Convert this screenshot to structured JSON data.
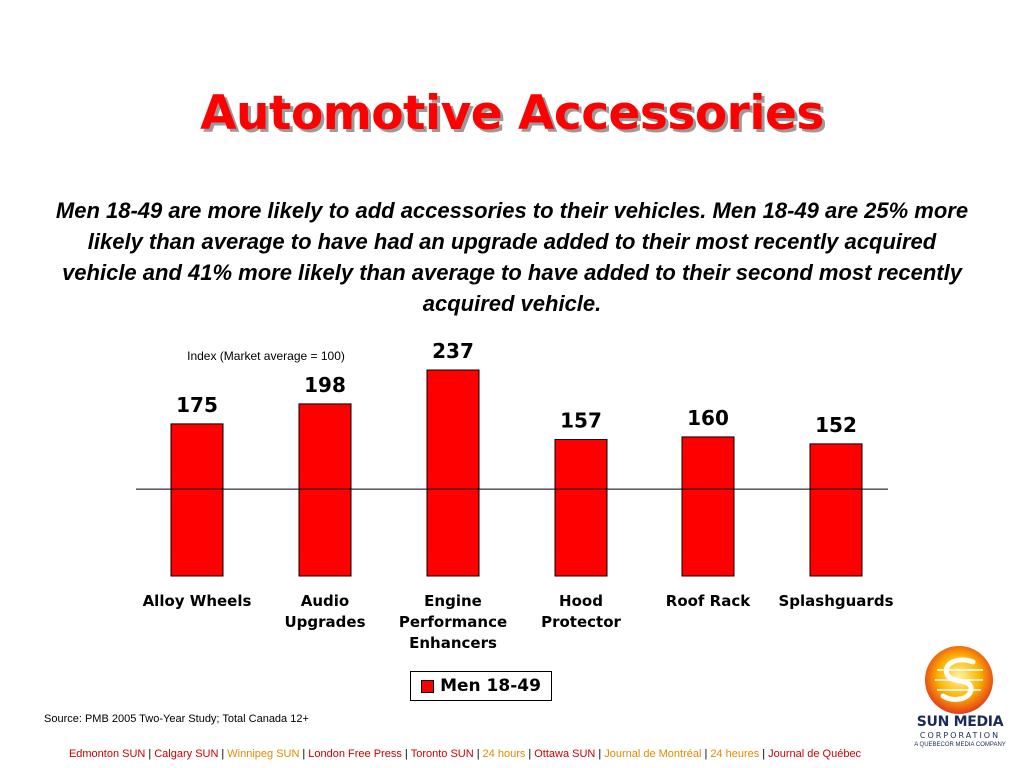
{
  "title": "Automotive Accessories",
  "subtitle": "Men 18-49 are more likely to add accessories to their vehicles.  Men 18-49 are 25% more likely than average to have had an upgrade added to their most recently acquired vehicle and 41% more likely than average to have added to their second most recently acquired vehicle.",
  "chart_data": {
    "type": "bar",
    "ylabel": "Index (Market average = 100)",
    "categories": [
      "Alloy Wheels",
      "Audio Upgrades",
      "Engine Performance Enhancers",
      "Hood Protector",
      "Roof Rack",
      "Splashguards"
    ],
    "category_lines": [
      [
        "Alloy Wheels"
      ],
      [
        "Audio",
        "Upgrades"
      ],
      [
        "Engine",
        "Performance",
        "Enhancers"
      ],
      [
        "Hood",
        "Protector"
      ],
      [
        "Roof Rack"
      ],
      [
        "Splashguards"
      ]
    ],
    "series": [
      {
        "name": "Men 18-49",
        "values": [
          175,
          198,
          237,
          157,
          160,
          152
        ]
      }
    ],
    "reference_line": 100,
    "ylim": [
      0,
      237
    ],
    "grid": false,
    "legend": "bottom",
    "bar_color": "#ff0000"
  },
  "legend": {
    "label": "Men 18-49"
  },
  "source": "Source: PMB 2005 Two-Year Study; Total Canada 12+",
  "footer": [
    {
      "text": "Edmonton SUN",
      "color": "#cc0000"
    },
    {
      "text": "Calgary SUN",
      "color": "#cc0000"
    },
    {
      "text": "Winnipeg SUN",
      "color": "#e08a00"
    },
    {
      "text": "London Free Press",
      "color": "#cc0000"
    },
    {
      "text": "Toronto SUN",
      "color": "#cc0000"
    },
    {
      "text": "24 hours",
      "color": "#e08a00"
    },
    {
      "text": "Ottawa SUN",
      "color": "#cc0000"
    },
    {
      "text": "Journal de Montréal",
      "color": "#e08a00"
    },
    {
      "text": "24 heures",
      "color": "#e08a00"
    },
    {
      "text": "Journal de Québec",
      "color": "#cc0000"
    }
  ],
  "logo": {
    "name": "SUN MEDIA",
    "corp": "CORPORATION",
    "tagline": "A QUEBECOR MEDIA COMPANY"
  }
}
